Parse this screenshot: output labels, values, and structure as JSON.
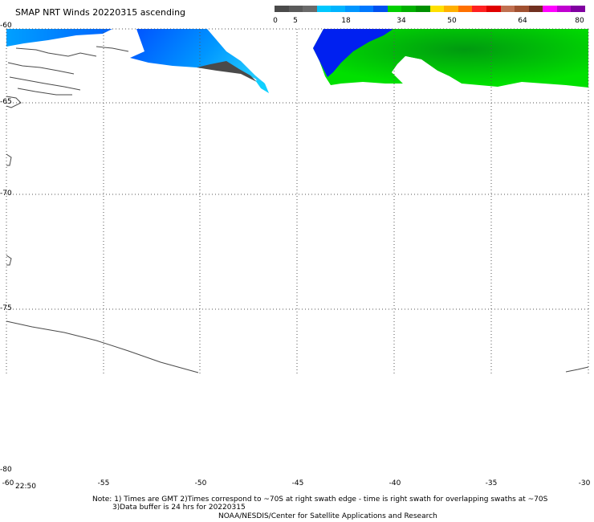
{
  "title": "SMAP NRT Winds 20220315 ascending",
  "colorbar": {
    "labels": [
      "0",
      "5",
      "18",
      "34",
      "50",
      "64",
      "80"
    ],
    "colors": [
      "#4a4a4a",
      "#5a5a5a",
      "#6a6a6a",
      "#00c8ff",
      "#00b4ff",
      "#0096ff",
      "#0078ff",
      "#0050f0",
      "#00d000",
      "#00b000",
      "#009000",
      "#ffe000",
      "#ffb000",
      "#ff7000",
      "#ff2020",
      "#e00000",
      "#c07050",
      "#a05030",
      "#703020",
      "#ff00ff",
      "#c000d0",
      "#8000a0"
    ]
  },
  "axes": {
    "y_labels": [
      "-60",
      "-65",
      "-70",
      "-75",
      "-80"
    ],
    "x_labels": [
      "-60",
      "-55",
      "-50",
      "-45",
      "-40",
      "-35",
      "-30"
    ]
  },
  "time_label": "22:50",
  "notes": {
    "line1": "Note: 1) Times are GMT 2)Times correspond to ~70S at right swath edge - time is right swath for overlapping swaths at ~70S",
    "line2": "3)Data buffer is 24 hrs for 20220315",
    "line3": "NOAA/NESDIS/Center for Satellite Applications and Research"
  }
}
